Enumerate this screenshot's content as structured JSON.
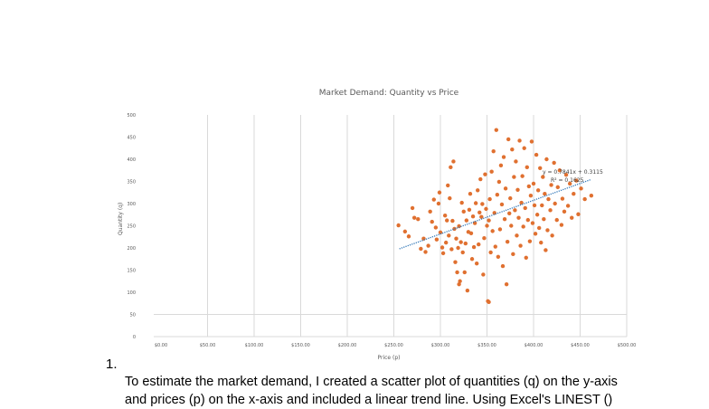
{
  "chart_data": {
    "type": "scatter",
    "title": "Market Demand: Quantity vs Price",
    "xlabel": "Price (p)",
    "ylabel": "Quantity (q)",
    "xlim": [
      0,
      500
    ],
    "ylim": [
      0,
      500
    ],
    "x_ticks": [
      "$0.00",
      "$50.00",
      "$100.00",
      "$150.00",
      "$200.00",
      "$250.00",
      "$300.00",
      "$350.00",
      "$400.00",
      "$450.00",
      "$500.00"
    ],
    "y_ticks": [
      "0",
      "50",
      "100",
      "150",
      "200",
      "250",
      "300",
      "350",
      "400",
      "450",
      "500"
    ],
    "grid": true,
    "legend": null,
    "marker_color": "#E07030",
    "trendline": {
      "type": "linear",
      "style": "dotted",
      "color": "#2E75B6",
      "equation": "y = 0.7841x + 0.3115",
      "r_squared": "R² = 0.1625",
      "x_range": [
        256,
        462
      ]
    },
    "series": [
      {
        "name": "Quantity vs Price",
        "points": [
          [
            255,
            251
          ],
          [
            262,
            237
          ],
          [
            266,
            226
          ],
          [
            270,
            290
          ],
          [
            272,
            268
          ],
          [
            276,
            265
          ],
          [
            279,
            198
          ],
          [
            282,
            221
          ],
          [
            284,
            191
          ],
          [
            287,
            205
          ],
          [
            289,
            282
          ],
          [
            291,
            259
          ],
          [
            293,
            309
          ],
          [
            295,
            246
          ],
          [
            296,
            219
          ],
          [
            298,
            300
          ],
          [
            299,
            325
          ],
          [
            300,
            235
          ],
          [
            302,
            201
          ],
          [
            303,
            188
          ],
          [
            305,
            273
          ],
          [
            306,
            212
          ],
          [
            307,
            262
          ],
          [
            308,
            341
          ],
          [
            309,
            228
          ],
          [
            310,
            312
          ],
          [
            311,
            382
          ],
          [
            312,
            197
          ],
          [
            313,
            261
          ],
          [
            314,
            395
          ],
          [
            315,
            243
          ],
          [
            316,
            168
          ],
          [
            317,
            221
          ],
          [
            318,
            145
          ],
          [
            319,
            200
          ],
          [
            320,
            249
          ],
          [
            321,
            125
          ],
          [
            322,
            213
          ],
          [
            323,
            302
          ],
          [
            324,
            190
          ],
          [
            325,
            282
          ],
          [
            326,
            145
          ],
          [
            327,
            210
          ],
          [
            328,
            262
          ],
          [
            329,
            104
          ],
          [
            330,
            236
          ],
          [
            331,
            286
          ],
          [
            332,
            322
          ],
          [
            333,
            233
          ],
          [
            334,
            175
          ],
          [
            335,
            271
          ],
          [
            336,
            202
          ],
          [
            337,
            256
          ],
          [
            338,
            301
          ],
          [
            339,
            165
          ],
          [
            340,
            330
          ],
          [
            341,
            208
          ],
          [
            342,
            280
          ],
          [
            343,
            355
          ],
          [
            344,
            270
          ],
          [
            345,
            299
          ],
          [
            346,
            140
          ],
          [
            347,
            222
          ],
          [
            348,
            366
          ],
          [
            349,
            288
          ],
          [
            350,
            250
          ],
          [
            351,
            80
          ],
          [
            352,
            262
          ],
          [
            353,
            310
          ],
          [
            354,
            190
          ],
          [
            355,
            372
          ],
          [
            356,
            238
          ],
          [
            357,
            418
          ],
          [
            358,
            279
          ],
          [
            359,
            203
          ],
          [
            360,
            466
          ],
          [
            361,
            320
          ],
          [
            362,
            180
          ],
          [
            363,
            349
          ],
          [
            364,
            242
          ],
          [
            365,
            386
          ],
          [
            366,
            298
          ],
          [
            367,
            159
          ],
          [
            368,
            405
          ],
          [
            369,
            265
          ],
          [
            370,
            334
          ],
          [
            371,
            118
          ],
          [
            372,
            214
          ],
          [
            373,
            445
          ],
          [
            374,
            278
          ],
          [
            375,
            312
          ],
          [
            376,
            250
          ],
          [
            377,
            422
          ],
          [
            378,
            186
          ],
          [
            379,
            360
          ],
          [
            380,
            285
          ],
          [
            381,
            395
          ],
          [
            382,
            228
          ],
          [
            383,
            331
          ],
          [
            384,
            268
          ],
          [
            385,
            442
          ],
          [
            386,
            205
          ],
          [
            387,
            302
          ],
          [
            388,
            362
          ],
          [
            389,
            248
          ],
          [
            390,
            425
          ],
          [
            391,
            290
          ],
          [
            392,
            178
          ],
          [
            393,
            382
          ],
          [
            394,
            263
          ],
          [
            395,
            339
          ],
          [
            396,
            215
          ],
          [
            397,
            318
          ],
          [
            398,
            440
          ],
          [
            399,
            256
          ],
          [
            400,
            345
          ],
          [
            401,
            296
          ],
          [
            402,
            232
          ],
          [
            403,
            410
          ],
          [
            404,
            275
          ],
          [
            405,
            330
          ],
          [
            406,
            245
          ],
          [
            407,
            380
          ],
          [
            408,
            212
          ],
          [
            409,
            296
          ],
          [
            410,
            360
          ],
          [
            411,
            265
          ],
          [
            412,
            322
          ],
          [
            413,
            195
          ],
          [
            414,
            400
          ],
          [
            415,
            240
          ],
          [
            416,
            310
          ],
          [
            418,
            285
          ],
          [
            419,
            342
          ],
          [
            420,
            228
          ],
          [
            422,
            392
          ],
          [
            423,
            300
          ],
          [
            425,
            263
          ],
          [
            426,
            337
          ],
          [
            428,
            375
          ],
          [
            430,
            252
          ],
          [
            431,
            311
          ],
          [
            433,
            282
          ],
          [
            435,
            365
          ],
          [
            437,
            295
          ],
          [
            439,
            345
          ],
          [
            441,
            268
          ],
          [
            443,
            322
          ],
          [
            446,
            352
          ],
          [
            448,
            276
          ],
          [
            451,
            334
          ],
          [
            455,
            310
          ],
          [
            462,
            318
          ],
          [
            352,
            78
          ],
          [
            320,
            118
          ]
        ]
      }
    ]
  },
  "document": {
    "list_number": "1.",
    "paragraph_line1": "To estimate the market demand, I created a scatter plot of quantities (q) on the y-axis",
    "paragraph_line2": "and prices (p) on the x-axis and included a linear trend line. Using Excel's LINEST ()"
  }
}
